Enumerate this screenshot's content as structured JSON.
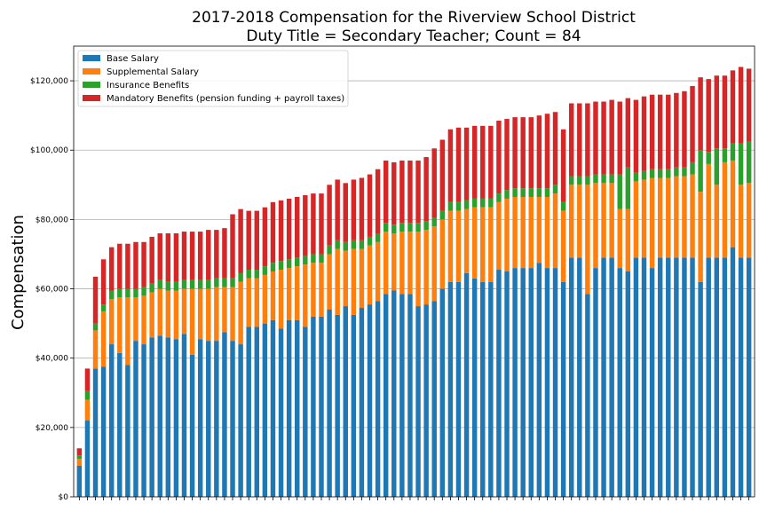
{
  "chart_data": {
    "type": "bar",
    "stacked": true,
    "title": "2017-2018 Compensation for the Riverview School District",
    "subtitle": "Duty Title = Secondary Teacher; Count = 84",
    "xlabel": "",
    "ylabel": "Compensation",
    "ylim": [
      0,
      130000
    ],
    "yticks": [
      0,
      20000,
      40000,
      60000,
      80000,
      100000,
      120000
    ],
    "ytick_labels": [
      "$0",
      "$20,000",
      "$40,000",
      "$60,000",
      "$80,000",
      "$100,000",
      "$120,000"
    ],
    "grid": "horizontal",
    "legend_position": "top-left",
    "series": [
      {
        "name": "Base Salary",
        "color": "#1f77b4",
        "values": [
          9000,
          22000,
          37000,
          37500,
          44000,
          41500,
          38000,
          45000,
          44000,
          46000,
          46500,
          46000,
          45500,
          47000,
          41000,
          45500,
          45000,
          45000,
          47500,
          45000,
          44000,
          49000,
          49000,
          50000,
          51000,
          48500,
          51000,
          51000,
          49000,
          52000,
          52000,
          54000,
          52500,
          55000,
          52500,
          54500,
          55500,
          56500,
          58500,
          59500,
          58500,
          58500,
          55000,
          55500,
          56500,
          60000,
          62000,
          62000,
          64500,
          63000,
          62000,
          62000,
          65500,
          65000,
          66000,
          66000,
          66000,
          67500,
          66000,
          66000,
          62000,
          69000,
          69000,
          58500,
          66000,
          69000,
          69000,
          66000,
          65000,
          69000,
          69000,
          66000,
          69000,
          69000,
          69000,
          69000,
          69000,
          62000,
          69000,
          69000,
          69000,
          72000,
          69000,
          69000
        ]
      },
      {
        "name": "Supplemental Salary",
        "color": "#ff7f0e",
        "values": [
          2000,
          6000,
          11000,
          16000,
          13000,
          16000,
          19500,
          12500,
          14000,
          13000,
          13500,
          13500,
          14000,
          13000,
          19000,
          14500,
          15000,
          15500,
          13000,
          15500,
          18000,
          14000,
          14000,
          14000,
          14000,
          17000,
          15000,
          15500,
          18000,
          15500,
          15500,
          16000,
          19000,
          16000,
          19000,
          17000,
          17000,
          17000,
          18000,
          16500,
          18000,
          18000,
          21500,
          21500,
          21500,
          20000,
          20500,
          20500,
          18500,
          20500,
          21500,
          21500,
          19500,
          21000,
          20500,
          20500,
          20500,
          19000,
          20500,
          21500,
          20500,
          21000,
          21000,
          31500,
          24500,
          21500,
          21500,
          17000,
          18000,
          22000,
          22500,
          26000,
          23000,
          23000,
          23500,
          23500,
          24000,
          26000,
          27000,
          21000,
          27500,
          25000,
          21000,
          21500
        ]
      },
      {
        "name": "Insurance Benefits",
        "color": "#2ca02c",
        "values": [
          1000,
          2500,
          2000,
          2000,
          2500,
          2500,
          2500,
          2500,
          2500,
          2500,
          2500,
          2500,
          2500,
          2500,
          2500,
          2500,
          2500,
          2500,
          2500,
          2500,
          2500,
          2500,
          2500,
          2500,
          2500,
          2500,
          2500,
          2500,
          2500,
          2500,
          2500,
          2500,
          2500,
          2500,
          2500,
          2500,
          2500,
          2500,
          2500,
          2500,
          2500,
          2500,
          2500,
          2500,
          2500,
          2500,
          2500,
          2500,
          2500,
          2500,
          2500,
          2500,
          2500,
          2500,
          2500,
          2500,
          2500,
          2500,
          2500,
          2500,
          2500,
          2500,
          2500,
          2500,
          2500,
          2500,
          2500,
          10000,
          12000,
          2500,
          2500,
          2500,
          2500,
          2500,
          2500,
          2500,
          3500,
          12000,
          3500,
          10500,
          4000,
          5000,
          12000,
          12000
        ]
      },
      {
        "name": "Mandatory Benefits (pension funding + payroll taxes)",
        "color": "#d62728",
        "values": [
          2000,
          6500,
          13500,
          13000,
          12500,
          13000,
          13000,
          13500,
          13000,
          13500,
          13500,
          14000,
          14000,
          14000,
          14000,
          14000,
          14500,
          14000,
          14500,
          18500,
          18500,
          17000,
          17000,
          17000,
          17500,
          17500,
          17500,
          17500,
          17500,
          17500,
          17500,
          17500,
          17500,
          17000,
          17500,
          18000,
          18000,
          18500,
          18000,
          18000,
          18000,
          18000,
          18000,
          18500,
          20000,
          20500,
          21000,
          21500,
          21000,
          21000,
          21000,
          21000,
          21000,
          20500,
          20500,
          20500,
          20500,
          21000,
          21500,
          21000,
          21000,
          21000,
          21000,
          21000,
          21000,
          21000,
          21500,
          21000,
          20000,
          21000,
          21500,
          21500,
          21500,
          21500,
          21500,
          22000,
          22000,
          21000,
          21000,
          21000,
          21000,
          21000,
          22000,
          21000
        ]
      }
    ]
  }
}
